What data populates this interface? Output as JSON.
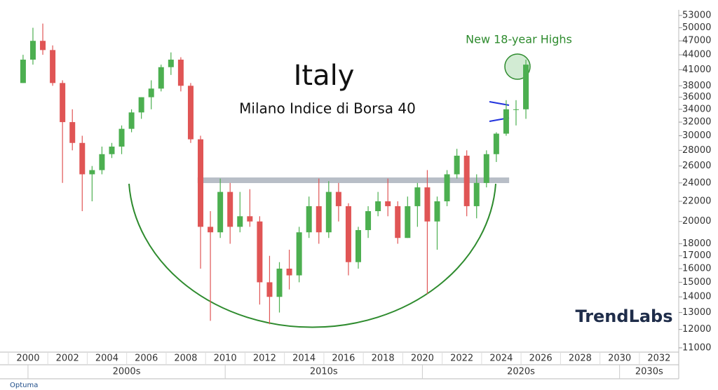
{
  "chart_data": {
    "type": "candlestick",
    "title": "Italy",
    "subtitle": "Milano Indice di Borsa 40",
    "annotation": "New 18-year Highs",
    "logo": "TrendLabs",
    "footer": "Optuma",
    "log_scale": true,
    "up_color": "#4caf50",
    "down_color": "#e05555",
    "x": [
      1999.75,
      2000.25,
      2000.75,
      2001.25,
      2001.75,
      2002.25,
      2002.75,
      2003.25,
      2003.75,
      2004.25,
      2004.75,
      2005.25,
      2005.75,
      2006.25,
      2006.75,
      2007.25,
      2007.75,
      2008.25,
      2008.75,
      2009.25,
      2009.75,
      2010.25,
      2010.75,
      2011.25,
      2011.75,
      2012.25,
      2012.75,
      2013.25,
      2013.75,
      2014.25,
      2014.75,
      2015.25,
      2015.75,
      2016.25,
      2016.75,
      2017.25,
      2017.75,
      2018.25,
      2018.75,
      2019.25,
      2019.75,
      2020.25,
      2020.75,
      2021.25,
      2021.75,
      2022.25,
      2022.75,
      2023.25,
      2023.75,
      2024.25,
      2024.75,
      2025.25
    ],
    "open": [
      38500,
      43000,
      47000,
      45000,
      38500,
      32000,
      29000,
      25000,
      25500,
      27500,
      28500,
      31000,
      33500,
      36000,
      37500,
      41500,
      43000,
      38000,
      29500,
      19500,
      19000,
      23000,
      19500,
      20500,
      20000,
      15000,
      14000,
      16000,
      15500,
      19000,
      21500,
      19000,
      23000,
      21500,
      16500,
      19200,
      21000,
      22000,
      21500,
      18500,
      21500,
      23500,
      20000,
      22000,
      25000,
      27300,
      21500,
      24000,
      27500,
      30300,
      34000,
      34000
    ],
    "high": [
      44000,
      50000,
      51000,
      46000,
      39000,
      34000,
      30000,
      26000,
      28500,
      29000,
      31500,
      34000,
      36000,
      39000,
      42000,
      44500,
      43500,
      38500,
      30000,
      21000,
      24500,
      24000,
      23000,
      23300,
      20500,
      17000,
      16500,
      17500,
      19500,
      22500,
      24500,
      24200,
      24000,
      21800,
      19500,
      21500,
      23000,
      24500,
      22000,
      22500,
      24000,
      25500,
      22500,
      25500,
      28200,
      28000,
      25000,
      28000,
      30500,
      35500,
      35500,
      43000
    ],
    "low": [
      38500,
      42000,
      44000,
      38000,
      24000,
      28000,
      21000,
      22000,
      25000,
      27000,
      27500,
      30500,
      32500,
      34000,
      37000,
      40000,
      37000,
      29000,
      16000,
      12500,
      18500,
      18000,
      19000,
      19500,
      13500,
      12300,
      13000,
      14500,
      15000,
      18500,
      18000,
      18500,
      20000,
      15500,
      16000,
      18500,
      20500,
      20500,
      18000,
      18500,
      19500,
      14200,
      17500,
      21500,
      24500,
      20500,
      20300,
      23500,
      26500,
      30000,
      31500,
      32500
    ],
    "close": [
      43000,
      47000,
      45000,
      38500,
      32000,
      29000,
      25000,
      25500,
      27500,
      28500,
      31000,
      33500,
      36000,
      37500,
      41500,
      43000,
      38000,
      29500,
      19500,
      19000,
      23000,
      19500,
      20500,
      20000,
      15000,
      14000,
      16000,
      15500,
      19000,
      21500,
      19000,
      23000,
      21500,
      16500,
      19200,
      21000,
      22000,
      21500,
      18500,
      21500,
      23500,
      20000,
      22000,
      25000,
      27300,
      21500,
      24000,
      27500,
      30300,
      34000,
      34000,
      42000
    ],
    "resistance": {
      "value": 24300,
      "x": [
        2008.6,
        2024.4
      ]
    },
    "xlim": [
      1998.58,
      2033.0
    ],
    "xticks": [
      2000,
      2002,
      2004,
      2006,
      2008,
      2010,
      2012,
      2014,
      2016,
      2018,
      2020,
      2022,
      2024,
      2026,
      2028,
      2030,
      2032
    ],
    "decades": [
      {
        "value": 2000,
        "label": "2000s"
      },
      {
        "value": 2010,
        "label": "2010s"
      },
      {
        "value": 2020,
        "label": "2020s"
      },
      {
        "value": 2030,
        "label": "2030s"
      }
    ],
    "ylim": [
      10780,
      54430
    ],
    "yticks": [
      11000,
      12000,
      13000,
      14000,
      15000,
      16000,
      17000,
      18000,
      20000,
      22000,
      24000,
      26000,
      28000,
      30000,
      32000,
      34000,
      36000,
      38000,
      41000,
      44000,
      47000,
      50000,
      53000
    ]
  }
}
